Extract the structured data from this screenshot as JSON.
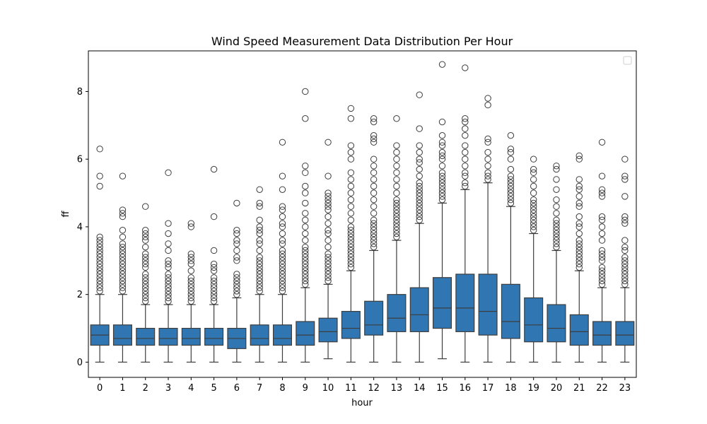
{
  "chart_data": {
    "type": "box",
    "title": "Wind Speed Measurement Data Distribution Per Hour",
    "xlabel": "hour",
    "ylabel": "ff",
    "categories": [
      "0",
      "1",
      "2",
      "3",
      "4",
      "5",
      "6",
      "7",
      "8",
      "9",
      "10",
      "11",
      "12",
      "13",
      "14",
      "15",
      "16",
      "17",
      "18",
      "19",
      "20",
      "21",
      "22",
      "23"
    ],
    "ylim": [
      -0.45,
      9.2
    ],
    "yticks": [
      0,
      2,
      4,
      6,
      8
    ],
    "grid": false,
    "legend": "top-right (empty)",
    "colors": {
      "box_fill": "#2f76b2",
      "line": "#3d3d3d",
      "flier_edge": "#3d3d3d"
    },
    "boxes": [
      {
        "hour": "0",
        "whislo": 0,
        "q1": 0.5,
        "med": 0.8,
        "q3": 1.1,
        "whishi": 2.0,
        "fliers": [
          2.1,
          2.2,
          2.3,
          2.4,
          2.5,
          2.6,
          2.7,
          2.8,
          2.9,
          3.0,
          3.1,
          3.2,
          3.3,
          3.4,
          3.5,
          3.6,
          3.7,
          5.2,
          5.5,
          6.3
        ]
      },
      {
        "hour": "1",
        "whislo": 0,
        "q1": 0.5,
        "med": 0.7,
        "q3": 1.1,
        "whishi": 2.0,
        "fliers": [
          2.1,
          2.2,
          2.3,
          2.4,
          2.5,
          2.6,
          2.7,
          2.8,
          2.9,
          3.0,
          3.1,
          3.2,
          3.3,
          3.4,
          3.5,
          3.7,
          3.9,
          4.3,
          4.4,
          4.5,
          5.5
        ]
      },
      {
        "hour": "2",
        "whislo": 0,
        "q1": 0.5,
        "med": 0.7,
        "q3": 1.0,
        "whishi": 1.7,
        "fliers": [
          1.8,
          1.9,
          2.0,
          2.1,
          2.2,
          2.3,
          2.4,
          2.5,
          2.6,
          2.8,
          2.9,
          3.0,
          3.1,
          3.2,
          3.4,
          3.6,
          3.7,
          3.8,
          3.9,
          4.6
        ]
      },
      {
        "hour": "3",
        "whislo": 0,
        "q1": 0.5,
        "med": 0.7,
        "q3": 1.0,
        "whishi": 1.7,
        "fliers": [
          1.8,
          1.9,
          2.0,
          2.1,
          2.2,
          2.3,
          2.4,
          2.5,
          2.6,
          2.8,
          2.9,
          3.0,
          3.3,
          3.5,
          3.8,
          4.1,
          5.6
        ]
      },
      {
        "hour": "4",
        "whislo": 0,
        "q1": 0.5,
        "med": 0.7,
        "q3": 1.0,
        "whishi": 1.7,
        "fliers": [
          1.8,
          1.9,
          2.0,
          2.1,
          2.2,
          2.3,
          2.4,
          2.5,
          2.7,
          2.9,
          3.0,
          3.1,
          3.2,
          4.0,
          4.1
        ]
      },
      {
        "hour": "5",
        "whislo": 0,
        "q1": 0.5,
        "med": 0.7,
        "q3": 1.0,
        "whishi": 1.7,
        "fliers": [
          1.8,
          1.9,
          2.0,
          2.1,
          2.2,
          2.3,
          2.4,
          2.5,
          2.7,
          2.8,
          2.9,
          3.3,
          4.3,
          5.7
        ]
      },
      {
        "hour": "6",
        "whislo": 0,
        "q1": 0.4,
        "med": 0.7,
        "q3": 1.0,
        "whishi": 1.9,
        "fliers": [
          2.0,
          2.1,
          2.2,
          2.3,
          2.4,
          2.5,
          2.6,
          3.0,
          3.1,
          3.3,
          3.5,
          3.6,
          3.8,
          3.9,
          4.7
        ]
      },
      {
        "hour": "7",
        "whislo": 0,
        "q1": 0.5,
        "med": 0.7,
        "q3": 1.1,
        "whishi": 2.0,
        "fliers": [
          2.1,
          2.2,
          2.3,
          2.4,
          2.5,
          2.6,
          2.7,
          2.8,
          2.9,
          3.0,
          3.1,
          3.3,
          3.5,
          3.6,
          3.8,
          3.9,
          4.0,
          4.2,
          4.6,
          4.7,
          5.1
        ]
      },
      {
        "hour": "8",
        "whislo": 0,
        "q1": 0.5,
        "med": 0.7,
        "q3": 1.1,
        "whishi": 2.0,
        "fliers": [
          2.1,
          2.2,
          2.3,
          2.4,
          2.5,
          2.6,
          2.7,
          2.8,
          2.9,
          3.0,
          3.1,
          3.2,
          3.3,
          3.5,
          3.6,
          3.8,
          4.0,
          4.1,
          4.3,
          4.5,
          4.6,
          5.1,
          5.5,
          6.5
        ]
      },
      {
        "hour": "9",
        "whislo": 0,
        "q1": 0.5,
        "med": 0.8,
        "q3": 1.2,
        "whishi": 2.2,
        "fliers": [
          2.3,
          2.4,
          2.5,
          2.6,
          2.7,
          2.8,
          2.9,
          3.0,
          3.1,
          3.2,
          3.3,
          3.4,
          3.6,
          3.8,
          4.0,
          4.2,
          4.4,
          4.7,
          5.0,
          5.2,
          5.6,
          5.8,
          7.2,
          8.0
        ]
      },
      {
        "hour": "10",
        "whislo": 0.1,
        "q1": 0.6,
        "med": 0.9,
        "q3": 1.3,
        "whishi": 2.3,
        "fliers": [
          2.4,
          2.5,
          2.6,
          2.7,
          2.8,
          2.9,
          3.0,
          3.1,
          3.2,
          3.4,
          3.6,
          3.8,
          3.9,
          4.1,
          4.3,
          4.5,
          4.6,
          4.7,
          4.8,
          4.9,
          5.0,
          5.5,
          6.5
        ]
      },
      {
        "hour": "11",
        "whislo": 0,
        "q1": 0.7,
        "med": 1.0,
        "q3": 1.5,
        "whishi": 2.7,
        "fliers": [
          2.8,
          2.9,
          3.0,
          3.1,
          3.2,
          3.3,
          3.4,
          3.5,
          3.6,
          3.7,
          3.8,
          3.9,
          4.0,
          4.2,
          4.4,
          4.6,
          4.8,
          5.0,
          5.2,
          5.4,
          5.6,
          6.0,
          6.2,
          6.4,
          7.2,
          7.5
        ]
      },
      {
        "hour": "12",
        "whislo": 0,
        "q1": 0.8,
        "med": 1.1,
        "q3": 1.8,
        "whishi": 3.3,
        "fliers": [
          3.4,
          3.5,
          3.6,
          3.7,
          3.8,
          3.9,
          4.0,
          4.1,
          4.2,
          4.4,
          4.6,
          4.8,
          5.0,
          5.2,
          5.4,
          5.6,
          5.8,
          6.0,
          6.5,
          6.6,
          6.7,
          7.1,
          7.2
        ]
      },
      {
        "hour": "13",
        "whislo": 0,
        "q1": 0.9,
        "med": 1.3,
        "q3": 2.0,
        "whishi": 3.6,
        "fliers": [
          3.7,
          3.8,
          3.9,
          4.0,
          4.1,
          4.2,
          4.3,
          4.4,
          4.5,
          4.6,
          4.7,
          4.8,
          5.0,
          5.2,
          5.4,
          5.6,
          5.8,
          6.0,
          6.2,
          6.4,
          7.2
        ]
      },
      {
        "hour": "14",
        "whislo": 0,
        "q1": 0.9,
        "med": 1.4,
        "q3": 2.2,
        "whishi": 4.1,
        "fliers": [
          4.2,
          4.3,
          4.4,
          4.5,
          4.6,
          4.7,
          4.8,
          4.9,
          5.0,
          5.1,
          5.2,
          5.3,
          5.5,
          5.7,
          5.9,
          6.0,
          6.2,
          6.4,
          6.9,
          7.9
        ]
      },
      {
        "hour": "15",
        "whislo": 0.1,
        "q1": 1.0,
        "med": 1.6,
        "q3": 2.5,
        "whishi": 4.7,
        "fliers": [
          4.8,
          4.9,
          5.0,
          5.1,
          5.2,
          5.3,
          5.4,
          5.5,
          5.6,
          5.8,
          6.0,
          6.1,
          6.2,
          6.4,
          6.5,
          6.7,
          7.1,
          8.8
        ]
      },
      {
        "hour": "16",
        "whislo": 0,
        "q1": 0.9,
        "med": 1.6,
        "q3": 2.6,
        "whishi": 5.1,
        "fliers": [
          5.2,
          5.3,
          5.5,
          5.6,
          5.8,
          6.0,
          6.2,
          6.4,
          6.7,
          6.9,
          7.1,
          7.2,
          8.7
        ]
      },
      {
        "hour": "17",
        "whislo": 0,
        "q1": 0.8,
        "med": 1.5,
        "q3": 2.6,
        "whishi": 5.3,
        "fliers": [
          5.4,
          5.5,
          5.6,
          5.8,
          6.0,
          6.2,
          6.5,
          6.6,
          7.6,
          7.8
        ]
      },
      {
        "hour": "18",
        "whislo": 0,
        "q1": 0.7,
        "med": 1.2,
        "q3": 2.3,
        "whishi": 4.6,
        "fliers": [
          4.7,
          4.8,
          4.9,
          5.0,
          5.1,
          5.2,
          5.3,
          5.4,
          5.5,
          5.7,
          6.0,
          6.2,
          6.3,
          6.7
        ]
      },
      {
        "hour": "19",
        "whislo": 0,
        "q1": 0.6,
        "med": 1.1,
        "q3": 1.9,
        "whishi": 3.8,
        "fliers": [
          3.9,
          4.0,
          4.1,
          4.2,
          4.3,
          4.4,
          4.5,
          4.6,
          4.7,
          4.8,
          5.0,
          5.2,
          5.4,
          5.6,
          5.7,
          6.0
        ]
      },
      {
        "hour": "20",
        "whislo": 0,
        "q1": 0.6,
        "med": 1.0,
        "q3": 1.7,
        "whishi": 3.3,
        "fliers": [
          3.4,
          3.5,
          3.6,
          3.7,
          3.8,
          3.9,
          4.0,
          4.1,
          4.2,
          4.4,
          4.6,
          4.8,
          5.1,
          5.4,
          5.7,
          5.8
        ]
      },
      {
        "hour": "21",
        "whislo": 0,
        "q1": 0.5,
        "med": 0.9,
        "q3": 1.4,
        "whishi": 2.7,
        "fliers": [
          2.8,
          2.9,
          3.0,
          3.1,
          3.2,
          3.3,
          3.4,
          3.5,
          3.6,
          3.8,
          4.0,
          4.1,
          4.3,
          4.6,
          4.7,
          4.9,
          5.1,
          5.2,
          5.4,
          6.0,
          6.1
        ]
      },
      {
        "hour": "22",
        "whislo": 0,
        "q1": 0.5,
        "med": 0.8,
        "q3": 1.2,
        "whishi": 2.2,
        "fliers": [
          2.3,
          2.4,
          2.5,
          2.6,
          2.7,
          2.8,
          3.0,
          3.1,
          3.2,
          3.3,
          3.6,
          3.8,
          4.0,
          4.2,
          4.3,
          4.9,
          5.0,
          5.1,
          5.5,
          6.5
        ]
      },
      {
        "hour": "23",
        "whislo": 0,
        "q1": 0.5,
        "med": 0.8,
        "q3": 1.2,
        "whishi": 2.2,
        "fliers": [
          2.3,
          2.4,
          2.5,
          2.6,
          2.7,
          2.8,
          2.9,
          3.0,
          3.1,
          3.3,
          3.4,
          3.6,
          4.1,
          4.2,
          4.3,
          4.9,
          5.4,
          5.5,
          6.0
        ]
      }
    ]
  }
}
